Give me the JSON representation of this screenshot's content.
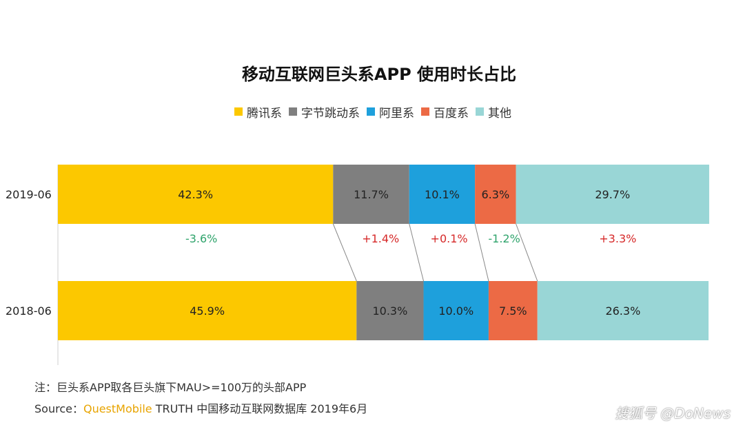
{
  "chart_data": {
    "type": "bar",
    "stacked": "100%",
    "orientation": "horizontal",
    "title": "移动互联网巨头系APP 使用时长占比",
    "categories": [
      "2019-06",
      "2018-06"
    ],
    "series": [
      {
        "name": "腾讯系",
        "color": "#fcc800",
        "values": [
          42.3,
          45.9
        ],
        "labels": [
          "42.3%",
          "45.9%"
        ]
      },
      {
        "name": "字节跳动系",
        "color": "#7f7f7f",
        "values": [
          11.7,
          10.3
        ],
        "labels": [
          "11.7%",
          "10.3%"
        ]
      },
      {
        "name": "阿里系",
        "color": "#1ea0dc",
        "values": [
          10.1,
          10.0
        ],
        "labels": [
          "10.1%",
          "10.0%"
        ]
      },
      {
        "name": "百度系",
        "color": "#ec6a45",
        "values": [
          6.3,
          7.5
        ],
        "labels": [
          "6.3%",
          "7.5%"
        ]
      },
      {
        "name": "其他",
        "color": "#99d6d6",
        "values": [
          29.7,
          26.3
        ],
        "labels": [
          "29.7%",
          "26.3%"
        ]
      }
    ],
    "changes": [
      {
        "label": "-3.6%",
        "color": "#2ea36b"
      },
      {
        "label": "+1.4%",
        "color": "#d62828"
      },
      {
        "label": "+0.1%",
        "color": "#d62828"
      },
      {
        "label": "-1.2%",
        "color": "#2ea36b"
      },
      {
        "label": "+3.3%",
        "color": "#d62828"
      }
    ],
    "legend_position": "top-center",
    "grid": false
  },
  "footer": {
    "note": "注：巨头系APP取各巨头旗下MAU>=100万的头部APP",
    "source_prefix": "Source：",
    "source_brand": "QuestMobile",
    "source_rest": " TRUTH 中国移动互联网数据库 2019年6月"
  },
  "watermark": "搜狐号 @DoNews"
}
